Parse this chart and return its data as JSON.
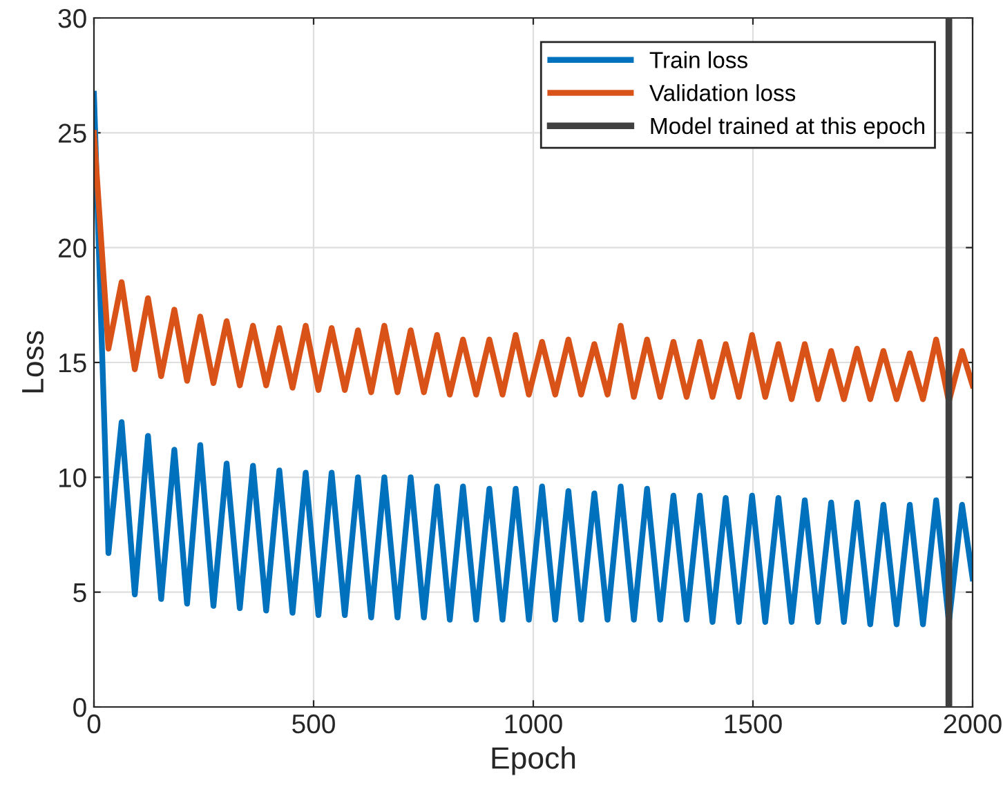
{
  "chart_data": {
    "type": "line",
    "xlabel": "Epoch",
    "ylabel": "Loss",
    "x": [
      0,
      33,
      63,
      93,
      123,
      153,
      183,
      212,
      242,
      272,
      302,
      332,
      362,
      392,
      422,
      452,
      482,
      511,
      541,
      571,
      601,
      631,
      661,
      691,
      721,
      751,
      781,
      810,
      840,
      870,
      900,
      930,
      960,
      990,
      1020,
      1050,
      1080,
      1109,
      1139,
      1169,
      1199,
      1229,
      1259,
      1289,
      1319,
      1349,
      1379,
      1408,
      1438,
      1468,
      1498,
      1528,
      1558,
      1588,
      1618,
      1648,
      1678,
      1707,
      1737,
      1767,
      1797,
      1827,
      1857,
      1887,
      1917,
      1946,
      1976,
      2000
    ],
    "series": [
      {
        "name": "Train loss",
        "color": "#0072bd",
        "values": [
          26.7,
          6.7,
          12.4,
          4.9,
          11.8,
          4.7,
          11.2,
          4.5,
          11.4,
          4.4,
          10.6,
          4.3,
          10.5,
          4.2,
          10.3,
          4.1,
          10.2,
          4.0,
          10.2,
          4.0,
          10.0,
          3.9,
          10.0,
          3.9,
          10.0,
          3.9,
          9.6,
          3.8,
          9.6,
          3.8,
          9.5,
          3.8,
          9.5,
          3.8,
          9.6,
          3.8,
          9.4,
          3.8,
          9.3,
          3.8,
          9.6,
          3.8,
          9.5,
          3.8,
          9.2,
          3.8,
          9.2,
          3.7,
          9.1,
          3.7,
          9.2,
          3.7,
          9.1,
          3.7,
          9.0,
          3.7,
          8.9,
          3.7,
          8.9,
          3.6,
          8.8,
          3.6,
          8.8,
          3.6,
          9.0,
          3.7,
          8.8,
          5.6
        ]
      },
      {
        "name": "Validation loss",
        "color": "#d95319",
        "values": [
          25.0,
          15.6,
          18.5,
          14.7,
          17.8,
          14.4,
          17.3,
          14.2,
          17.0,
          14.1,
          16.8,
          14.0,
          16.6,
          14.0,
          16.5,
          13.9,
          16.6,
          13.8,
          16.5,
          13.8,
          16.4,
          13.7,
          16.6,
          13.7,
          16.4,
          13.7,
          16.2,
          13.6,
          16.0,
          13.6,
          16.0,
          13.6,
          16.2,
          13.6,
          15.9,
          13.6,
          16.0,
          13.6,
          15.8,
          13.6,
          16.6,
          13.5,
          16.0,
          13.5,
          15.9,
          13.5,
          15.9,
          13.5,
          15.8,
          13.5,
          16.2,
          13.5,
          15.8,
          13.4,
          15.8,
          13.4,
          15.5,
          13.4,
          15.6,
          13.4,
          15.5,
          13.4,
          15.4,
          13.4,
          16.0,
          13.3,
          15.5,
          14.0
        ]
      }
    ],
    "ref_lines": [
      {
        "axis": "x",
        "value": 1946,
        "label": "Model trained at this epoch",
        "color": "#404040",
        "line_style": "solid"
      }
    ],
    "xlim": [
      0,
      2000
    ],
    "ylim": [
      0,
      30
    ],
    "xticks": [
      0,
      500,
      1000,
      1500,
      2000
    ],
    "yticks": [
      0,
      5,
      10,
      15,
      20,
      25,
      30
    ],
    "grid": true,
    "legend": "top right",
    "line_style": "solid",
    "marker": "none"
  }
}
